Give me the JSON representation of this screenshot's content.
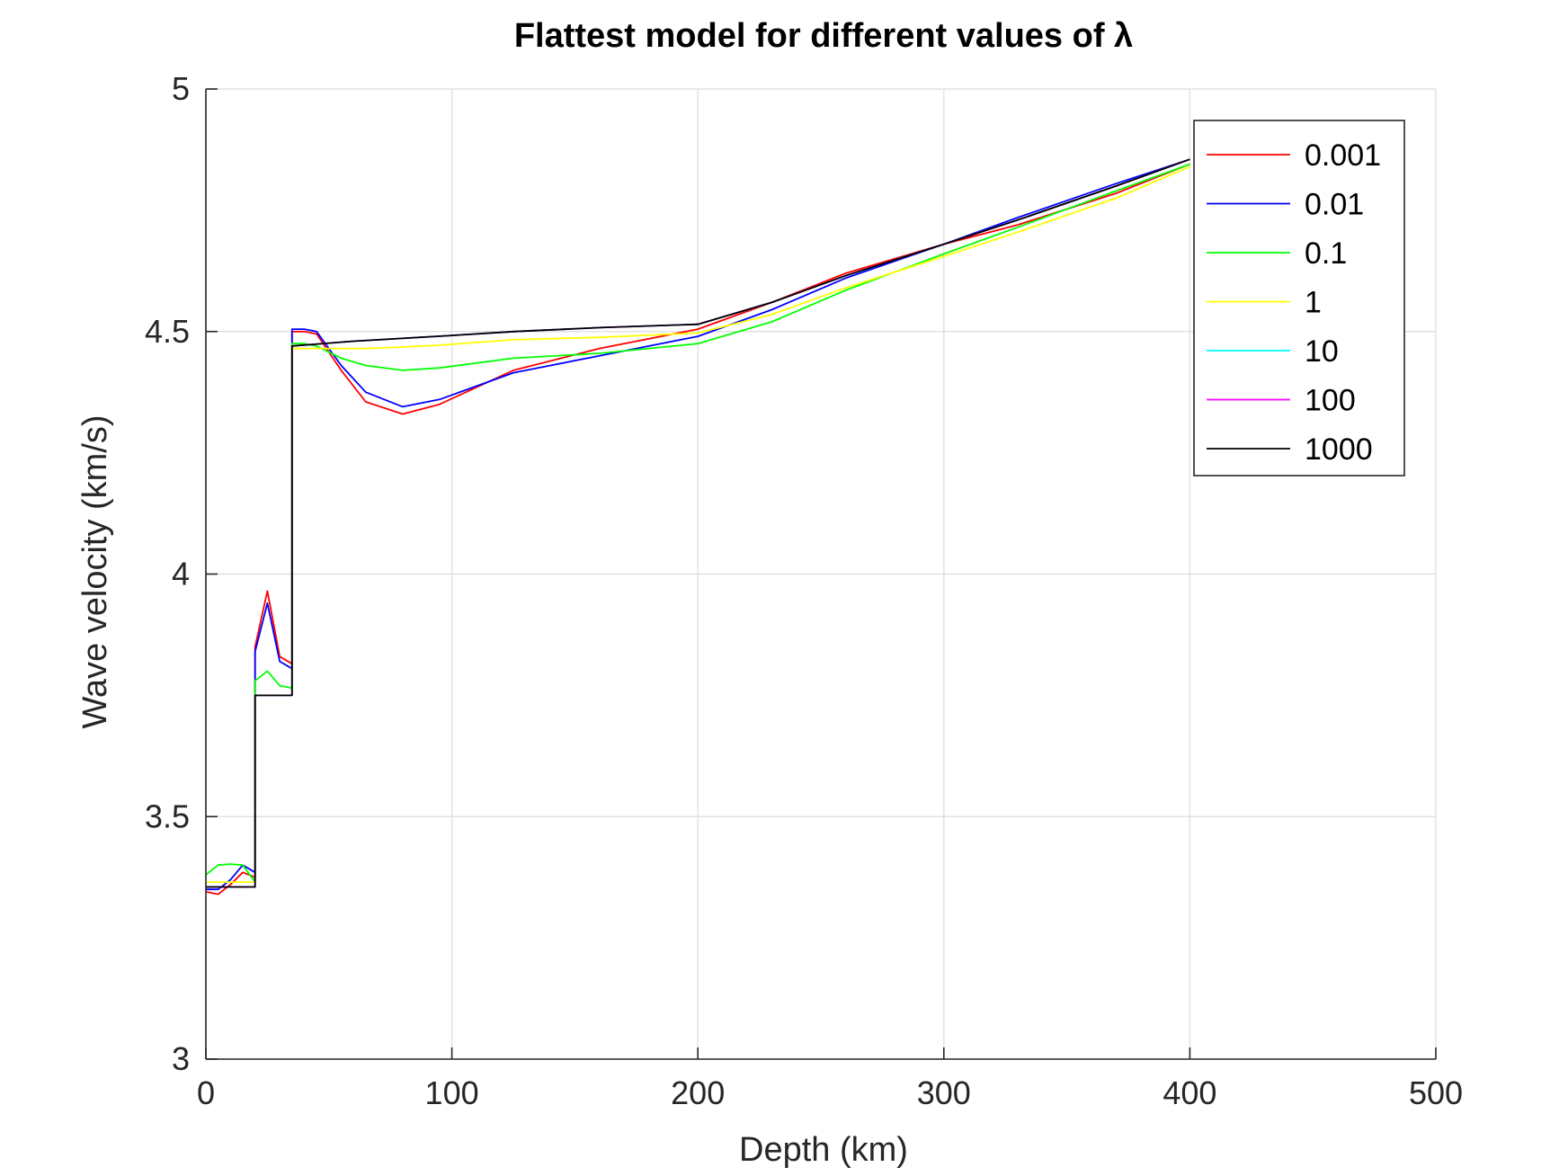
{
  "chart_data": {
    "type": "line",
    "title": "Flattest model for different values of λ",
    "xlabel": "Depth (km)",
    "ylabel": "Wave velocity (km/s)",
    "xlim": [
      0,
      500
    ],
    "ylim": [
      3,
      5
    ],
    "xticks": [
      0,
      100,
      200,
      300,
      400,
      500
    ],
    "xtick_labels": [
      "0",
      "100",
      "200",
      "300",
      "400",
      "500"
    ],
    "yticks": [
      3,
      3.5,
      4,
      4.5,
      5
    ],
    "ytick_labels": [
      "3",
      "3.5",
      "4",
      "4.5",
      "5"
    ],
    "grid": true,
    "legend_position": "top-right",
    "series": [
      {
        "name": "0.001",
        "color": "#ff0000",
        "x": [
          0,
          5,
          10,
          15,
          20,
          20,
          25,
          30,
          35,
          35,
          40,
          45,
          55,
          65,
          80,
          95,
          125,
          160,
          200,
          230,
          260,
          300,
          330,
          370,
          400
        ],
        "y": [
          3.345,
          3.34,
          3.36,
          3.385,
          3.375,
          3.85,
          3.965,
          3.83,
          3.815,
          4.5,
          4.5,
          4.495,
          4.42,
          4.355,
          4.33,
          4.35,
          4.42,
          4.465,
          4.505,
          4.56,
          4.62,
          4.68,
          4.72,
          4.785,
          4.845
        ]
      },
      {
        "name": "0.01",
        "color": "#0000ff",
        "x": [
          0,
          5,
          10,
          15,
          20,
          20,
          25,
          30,
          35,
          35,
          40,
          45,
          55,
          65,
          80,
          95,
          125,
          160,
          200,
          230,
          260,
          300,
          330,
          370,
          400
        ],
        "y": [
          3.35,
          3.35,
          3.37,
          3.4,
          3.385,
          3.84,
          3.94,
          3.82,
          3.805,
          4.505,
          4.505,
          4.5,
          4.43,
          4.375,
          4.345,
          4.36,
          4.415,
          4.45,
          4.49,
          4.545,
          4.61,
          4.68,
          4.735,
          4.805,
          4.855
        ]
      },
      {
        "name": "0.1",
        "color": "#00ff00",
        "x": [
          0,
          5,
          10,
          15,
          20,
          20,
          25,
          30,
          35,
          35,
          40,
          45,
          55,
          65,
          80,
          95,
          125,
          160,
          200,
          230,
          260,
          300,
          330,
          370,
          400
        ],
        "y": [
          3.38,
          3.4,
          3.402,
          3.4,
          3.365,
          3.78,
          3.8,
          3.77,
          3.765,
          4.475,
          4.475,
          4.47,
          4.445,
          4.43,
          4.42,
          4.425,
          4.445,
          4.455,
          4.475,
          4.52,
          4.585,
          4.66,
          4.715,
          4.79,
          4.845
        ]
      },
      {
        "name": "1",
        "color": "#ffff00",
        "x": [
          0,
          5,
          10,
          15,
          20,
          20,
          25,
          30,
          35,
          35,
          40,
          45,
          55,
          65,
          80,
          95,
          125,
          160,
          200,
          230,
          260,
          300,
          330,
          370,
          400
        ],
        "y": [
          3.365,
          3.365,
          3.365,
          3.365,
          3.365,
          3.75,
          3.75,
          3.75,
          3.75,
          4.465,
          4.465,
          4.465,
          4.465,
          4.465,
          4.468,
          4.472,
          4.483,
          4.488,
          4.497,
          4.535,
          4.59,
          4.655,
          4.705,
          4.775,
          4.84
        ]
      },
      {
        "name": "10",
        "color": "#00ffff",
        "x": [
          0,
          20,
          20,
          35,
          35,
          60,
          100,
          125,
          160,
          200,
          230,
          260,
          300,
          330,
          370,
          400
        ],
        "y": [
          3.355,
          3.355,
          3.75,
          3.75,
          4.47,
          4.48,
          4.492,
          4.5,
          4.508,
          4.515,
          4.56,
          4.615,
          4.68,
          4.73,
          4.8,
          4.855
        ]
      },
      {
        "name": "100",
        "color": "#ff00ff",
        "x": [
          0,
          20,
          20,
          35,
          35,
          60,
          100,
          125,
          160,
          200,
          230,
          260,
          300,
          330,
          370,
          400
        ],
        "y": [
          3.355,
          3.355,
          3.75,
          3.75,
          4.47,
          4.48,
          4.492,
          4.5,
          4.508,
          4.515,
          4.56,
          4.615,
          4.68,
          4.73,
          4.8,
          4.855
        ]
      },
      {
        "name": "1000",
        "color": "#000000",
        "x": [
          0,
          20,
          20,
          35,
          35,
          60,
          100,
          125,
          160,
          200,
          230,
          260,
          300,
          330,
          370,
          400
        ],
        "y": [
          3.355,
          3.355,
          3.75,
          3.75,
          4.47,
          4.48,
          4.492,
          4.5,
          4.508,
          4.515,
          4.56,
          4.615,
          4.68,
          4.73,
          4.8,
          4.855
        ]
      }
    ]
  }
}
